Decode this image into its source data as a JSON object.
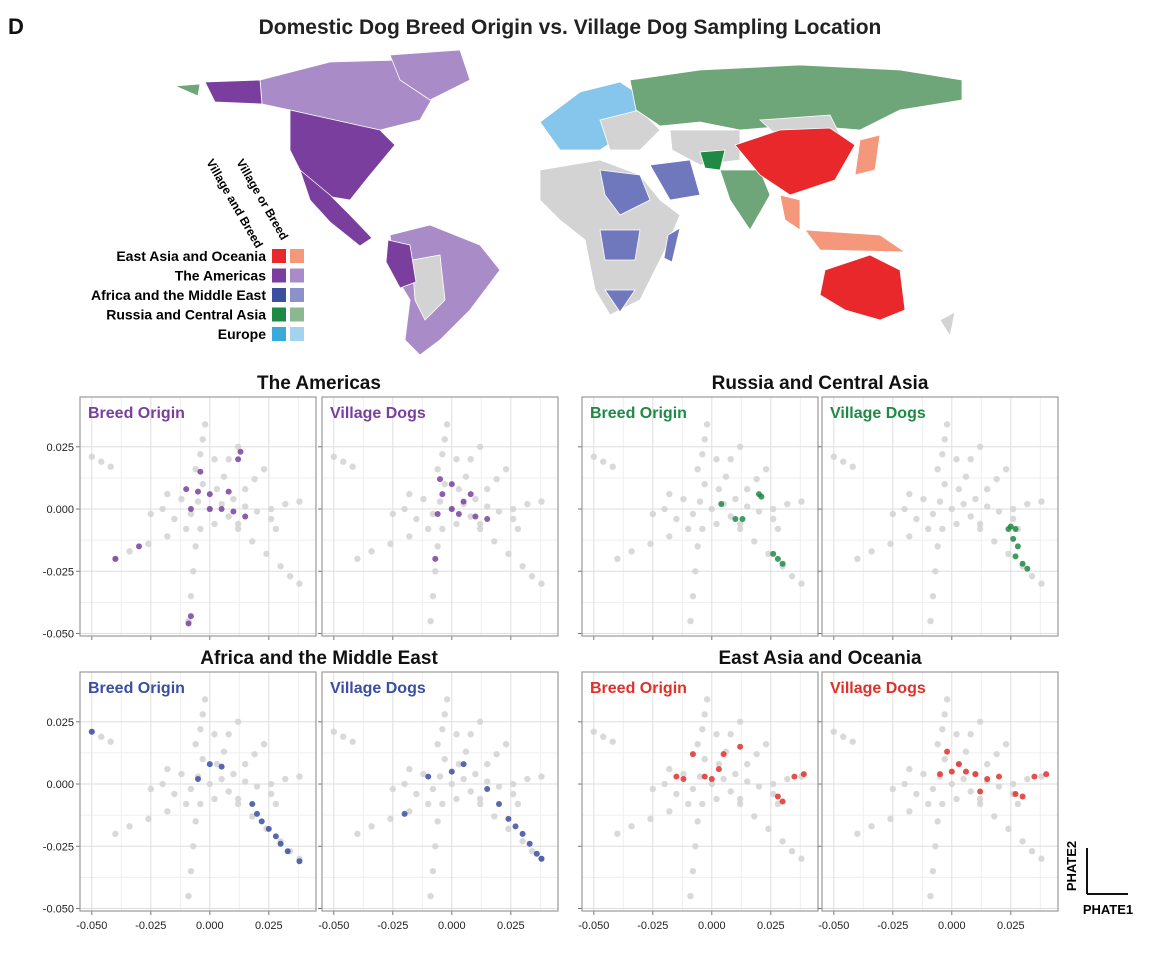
{
  "label": "D",
  "title": "Domestic Dog Breed Origin vs. Village Dog Sampling Location",
  "legend": {
    "headers": [
      "Village or Breed",
      "Village and Breed"
    ],
    "items": [
      {
        "name": "East Asia and Oceania",
        "colors": [
          "#e8282b",
          "#f4977b"
        ]
      },
      {
        "name": "The Americas",
        "colors": [
          "#7a3f9e",
          "#a98bc7"
        ]
      },
      {
        "name": "Africa and the Middle East",
        "colors": [
          "#3a4fa0",
          "#8b92c8"
        ]
      },
      {
        "name": "Russia and Central Asia",
        "colors": [
          "#1e8a44",
          "#8cb88f"
        ]
      },
      {
        "name": "Europe",
        "colors": [
          "#3aa9dc",
          "#a3d3ef"
        ]
      }
    ]
  },
  "group_titles": [
    "The Americas",
    "Russia and Central Asia",
    "Africa and the Middle East",
    "East Asia and Oceania"
  ],
  "axis_labels": {
    "x": "PHATE1",
    "y": "PHATE2"
  },
  "all_dogs": {
    "color": "#d2d2d2",
    "x": [
      0,
      -0.005,
      0.005,
      -0.008,
      0.008,
      0.003,
      -0.003,
      0.01,
      -0.012,
      0.002,
      -0.004,
      0.012,
      0.015,
      -0.015,
      0.006,
      -0.006,
      -0.004,
      -0.003,
      -0.002,
      0.002,
      0.008,
      0.012,
      -0.05,
      -0.046,
      -0.042,
      -0.01,
      -0.018,
      -0.026,
      -0.034,
      -0.04,
      -0.006,
      -0.007,
      -0.008,
      -0.009,
      0.012,
      0.018,
      0.024,
      0.03,
      0.034,
      0.038,
      0.02,
      0.026,
      0.032,
      0.038,
      0.015,
      0.019,
      0.023,
      0.026,
      0.028,
      -0.02,
      -0.025,
      -0.018
    ],
    "y": [
      0,
      0.003,
      0.002,
      -0.002,
      -0.003,
      0.008,
      0.01,
      0.004,
      0.004,
      -0.006,
      -0.008,
      -0.006,
      0.001,
      -0.004,
      0.013,
      0.016,
      0.022,
      0.028,
      0.034,
      0.02,
      0.02,
      0.025,
      0.021,
      0.019,
      0.017,
      -0.008,
      -0.011,
      -0.014,
      -0.017,
      -0.02,
      -0.015,
      -0.025,
      -0.035,
      -0.045,
      -0.008,
      -0.013,
      -0.018,
      -0.023,
      -0.027,
      -0.03,
      -0.001,
      0,
      0.002,
      0.003,
      0.008,
      0.012,
      0.016,
      -0.004,
      -0.008,
      0,
      -0.002,
      0.006
    ]
  },
  "chart_data": [
    {
      "type": "scatter",
      "title": "Breed Origin",
      "color": "#7a3f9e",
      "x": [
        -0.01,
        -0.005,
        0,
        -0.008,
        0,
        0.005,
        0.01,
        0.015,
        -0.004,
        0.012,
        0.013,
        -0.04,
        -0.03,
        -0.008,
        -0.009,
        0.008
      ],
      "y": [
        0.008,
        0.007,
        0.006,
        0,
        0,
        0,
        -0.001,
        -0.003,
        0.015,
        0.02,
        0.023,
        -0.02,
        -0.015,
        -0.043,
        -0.046,
        0.007
      ],
      "xlim": [
        -0.055,
        0.045
      ],
      "ylim": [
        -0.051,
        0.045
      ],
      "xticks": [
        {
          "value": -0.05,
          "label": "-0.050"
        },
        -0.025,
        {
          "value": 0,
          "label": "0.000"
        },
        0.025
      ],
      "yticks": [
        0.025,
        {
          "value": 0,
          "label": "0.000"
        },
        -0.025,
        {
          "value": -0.05,
          "label": "-0.050"
        }
      ]
    },
    {
      "type": "scatter",
      "title": "Village Dogs",
      "color": "#7a3f9e",
      "x": [
        0,
        0.005,
        0.003,
        0.01,
        0.015,
        -0.004,
        0,
        -0.006,
        0.008,
        -0.007,
        -0.005
      ],
      "y": [
        0,
        0.003,
        -0.002,
        -0.003,
        -0.004,
        0.006,
        0.01,
        -0.002,
        0.006,
        -0.02,
        0.012
      ],
      "xlim": [
        -0.055,
        0.045
      ],
      "ylim": [
        -0.051,
        0.045
      ],
      "xticks": [
        {
          "value": -0.05,
          "label": "-0.050"
        },
        -0.025,
        {
          "value": 0,
          "label": "0.000"
        },
        0.025
      ],
      "yticks": [
        0.025,
        {
          "value": 0,
          "label": "0.000"
        },
        -0.025,
        {
          "value": -0.05,
          "label": "-0.050"
        }
      ]
    },
    {
      "type": "scatter",
      "title": "Breed Origin",
      "color": "#1e8a44",
      "x": [
        0.02,
        0.021,
        0.004,
        0.01,
        0.013,
        0.026,
        0.03,
        0.028
      ],
      "y": [
        0.006,
        0.005,
        0.002,
        -0.004,
        -0.004,
        -0.018,
        -0.022,
        -0.02
      ],
      "xlim": [
        -0.055,
        0.045
      ],
      "ylim": [
        -0.051,
        0.045
      ],
      "xticks": [
        {
          "value": -0.05,
          "label": "-0.050"
        },
        -0.025,
        {
          "value": 0,
          "label": "0.000"
        },
        0.025
      ],
      "yticks": [
        0.025,
        {
          "value": 0,
          "label": "0.000"
        },
        -0.025,
        {
          "value": -0.05,
          "label": "-0.050"
        }
      ]
    },
    {
      "type": "scatter",
      "title": "Village Dogs",
      "color": "#1e8a44",
      "x": [
        0.025,
        0.027,
        0.026,
        0.028,
        0.027,
        0.03,
        0.032,
        0.024
      ],
      "y": [
        -0.007,
        -0.008,
        -0.012,
        -0.015,
        -0.019,
        -0.022,
        -0.024,
        -0.008
      ],
      "xlim": [
        -0.055,
        0.045
      ],
      "ylim": [
        -0.051,
        0.045
      ],
      "xticks": [
        {
          "value": -0.05,
          "label": "-0.050"
        },
        -0.025,
        {
          "value": 0,
          "label": "0.000"
        },
        0.025
      ],
      "yticks": [
        0.025,
        {
          "value": 0,
          "label": "0.000"
        },
        -0.025,
        {
          "value": -0.05,
          "label": "-0.050"
        }
      ]
    },
    {
      "type": "scatter",
      "title": "Breed Origin",
      "color": "#3a4fa0",
      "x": [
        -0.05,
        0,
        0.005,
        -0.005,
        0.018,
        0.022,
        0.025,
        0.028,
        0.03,
        0.033,
        0.038,
        0.02
      ],
      "y": [
        0.021,
        0.008,
        0.007,
        0.002,
        -0.008,
        -0.015,
        -0.018,
        -0.021,
        -0.024,
        -0.027,
        -0.031,
        -0.012
      ],
      "xlim": [
        -0.055,
        0.045
      ],
      "ylim": [
        -0.051,
        0.045
      ],
      "xticks": [
        {
          "value": -0.05,
          "label": "-0.050"
        },
        -0.025,
        {
          "value": 0,
          "label": "0.000"
        },
        0.025
      ],
      "yticks": [
        0.025,
        {
          "value": 0,
          "label": "0.000"
        },
        -0.025,
        {
          "value": -0.05,
          "label": "-0.050"
        }
      ]
    },
    {
      "type": "scatter",
      "title": "Village Dogs",
      "color": "#3a4fa0",
      "x": [
        -0.02,
        -0.01,
        0,
        0.005,
        0.015,
        0.02,
        0.024,
        0.027,
        0.03,
        0.033,
        0.036,
        0.038
      ],
      "y": [
        -0.012,
        0.003,
        0.005,
        0.008,
        -0.002,
        -0.008,
        -0.014,
        -0.017,
        -0.02,
        -0.024,
        -0.028,
        -0.03
      ],
      "xlim": [
        -0.055,
        0.045
      ],
      "ylim": [
        -0.051,
        0.045
      ],
      "xticks": [
        {
          "value": -0.05,
          "label": "-0.050"
        },
        -0.025,
        {
          "value": 0,
          "label": "0.000"
        },
        0.025
      ],
      "yticks": [
        0.025,
        {
          "value": 0,
          "label": "0.000"
        },
        -0.025,
        {
          "value": -0.05,
          "label": "-0.050"
        }
      ]
    },
    {
      "type": "scatter",
      "title": "Breed Origin",
      "color": "#e0302a",
      "x": [
        -0.015,
        -0.012,
        -0.008,
        0.003,
        0.005,
        0.012,
        0,
        0.028,
        0.03,
        0.035,
        0.039,
        -0.003
      ],
      "y": [
        0.003,
        0.002,
        0.012,
        0.006,
        0.012,
        0.015,
        0.002,
        -0.005,
        -0.007,
        0.003,
        0.004,
        0.003
      ],
      "xlim": [
        -0.055,
        0.045
      ],
      "ylim": [
        -0.051,
        0.045
      ],
      "xticks": [
        {
          "value": -0.05,
          "label": "-0.050"
        },
        -0.025,
        {
          "value": 0,
          "label": "0.000"
        },
        0.025
      ],
      "yticks": [
        0.025,
        {
          "value": 0,
          "label": "0.000"
        },
        -0.025,
        {
          "value": -0.05,
          "label": "-0.050"
        }
      ]
    },
    {
      "type": "scatter",
      "title": "Village Dogs",
      "color": "#e0302a",
      "x": [
        0,
        0.003,
        0.006,
        0.01,
        0.015,
        0.02,
        0.027,
        0.03,
        0.035,
        0.04,
        -0.005,
        0.012,
        -0.002
      ],
      "y": [
        0.005,
        0.008,
        0.005,
        0.004,
        0.002,
        0.003,
        -0.004,
        -0.005,
        0.003,
        0.004,
        0.004,
        -0.003,
        0.013
      ],
      "xlim": [
        -0.055,
        0.045
      ],
      "ylim": [
        -0.051,
        0.045
      ],
      "xticks": [
        {
          "value": -0.05,
          "label": "-0.050"
        },
        -0.025,
        {
          "value": 0,
          "label": "0.000"
        },
        0.025
      ],
      "yticks": [
        0.025,
        {
          "value": 0,
          "label": "0.000"
        },
        -0.025,
        {
          "value": -0.05,
          "label": "-0.050"
        }
      ]
    }
  ]
}
